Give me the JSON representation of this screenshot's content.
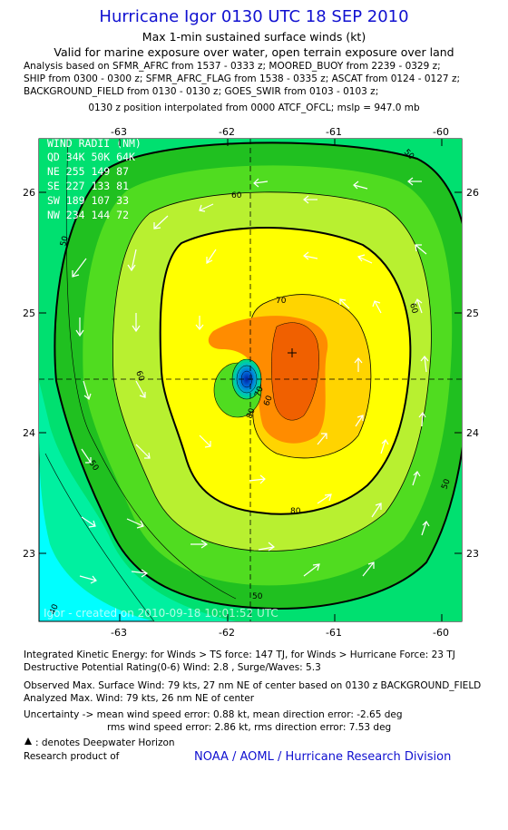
{
  "header": {
    "title": "Hurricane Igor 0130 UTC 18 SEP 2010",
    "subtitle1": "Max 1-min sustained surface winds (kt)",
    "subtitle2": "Valid for marine exposure over water, open terrain exposure over land",
    "analysis_lines": [
      "Analysis based on SFMR_AFRC from 1537 - 0333 z; MOORED_BUOY from 2239 - 0329 z;",
      "SHIP from 0300 - 0300 z; SFMR_AFRC_FLAG from 1538 - 0335 z; ASCAT from 0124 - 0127 z;",
      "BACKGROUND_FIELD from 0130 - 0130 z; GOES_SWIR from 0103 - 0103 z;"
    ],
    "position_line": "0130 z position interpolated from 0000 ATCF_OFCL; mslp = 947.0 mb"
  },
  "map": {
    "x_ticks": [
      "-63",
      "-62",
      "-61",
      "-60"
    ],
    "y_ticks": [
      "26",
      "25",
      "24",
      "23"
    ],
    "wind_radii": {
      "title": "WIND RADII (NM)",
      "rows": [
        "QD  34K  50K  64K",
        "NE  255  149   87",
        "SE  227  133   81",
        "SW  189  107   33",
        "NW  234  144   72"
      ]
    },
    "contour_labels": [
      "40",
      "50",
      "50",
      "50",
      "50",
      "50",
      "60",
      "60",
      "60",
      "60",
      "70",
      "70",
      "80",
      "80"
    ],
    "watermark": "Igor - created on 2010-09-18 10:01:52 UTC",
    "colors": {
      "cyan": "#00ffff",
      "aqua_green": "#00f0a0",
      "spring_green": "#00e070",
      "green": "#20c020",
      "lime": "#50dc20",
      "yellow_green": "#b8f030",
      "yellow": "#ffff00",
      "gold": "#ffd400",
      "orange": "#ff8c00",
      "dark_orange": "#f06000",
      "eye_blue": "#0030c0"
    }
  },
  "footer": {
    "ike": "Integrated Kinetic Energy:  for Winds > TS force: 147 TJ,  for Winds > Hurricane Force: 23 TJ",
    "dpr": "Destructive Potential Rating(0-6)   Wind: 2.8 , Surge/Waves: 5.3",
    "observed": "Observed Max. Surface Wind: 79 kts, 27 nm NE of center based on 0130 z BACKGROUND_FIELD",
    "analyzed": "Analyzed Max. Wind: 79 kts, 26 nm NE of center",
    "uncertainty1": "Uncertainty -> mean wind speed error: 0.88 kt,   mean direction error:  -2.65 deg",
    "uncertainty2": "rms wind speed error: 2.86 kt,   rms direction error: 7.53 deg",
    "deepwater": ": denotes Deepwater Horizon",
    "research": "Research product of",
    "credit": "NOAA / AOML / Hurricane Research Division"
  }
}
